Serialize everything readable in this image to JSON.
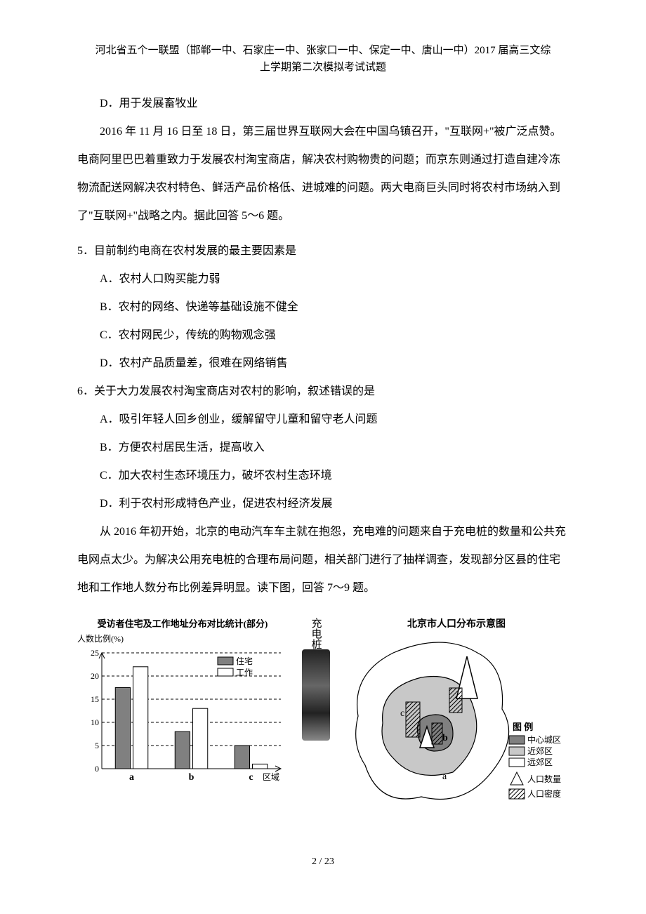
{
  "header": {
    "line1": "河北省五个一联盟（邯郸一中、石家庄一中、张家口一中、保定一中、唐山一中）2017 届高三文综",
    "line2": "上学期第二次模拟考试试题"
  },
  "options_top": {
    "D": "D．用于发展畜牧业"
  },
  "passage1": "2016 年 11 月 16 日至 18 日，第三届世界互联网大会在中国乌镇召开，\"互联网+\"被广泛点赞。电商阿里巴巴着重致力于发展农村淘宝商店，解决农村购物贵的问题；而京东则通过打造自建冷冻物流配送网解决农村特色、鲜活产品价格低、进城难的问题。两大电商巨头同时将农村市场纳入到了\"互联网+\"战略之内。据此回答 5～6 题。",
  "q5": {
    "stem": "5．目前制约电商在农村发展的最主要因素是",
    "A": "A．农村人口购买能力弱",
    "B": "B．农村的网络、快递等基础设施不健全",
    "C": "C．农村网民少，传统的购物观念强",
    "D": "D．农村产品质量差，很难在网络销售"
  },
  "q6": {
    "stem": "6．关于大力发展农村淘宝商店对农村的影响，叙述错误的是",
    "A": "A．吸引年轻人回乡创业，缓解留守儿童和留守老人问题",
    "B": "B．方便农村居民生活，提高收入",
    "C": "C．加大农村生态环境压力，破坏农村生态环境",
    "D": "D．利于农村形成特色产业，促进农村经济发展"
  },
  "passage2": "从 2016 年初开始，北京的电动汽车车主就在抱怨，充电难的问题来自于充电桩的数量和公共充电网点太少。为解决公用充电桩的合理布局问题，相关部门进行了抽样调查，发现部分区县的住宅地和工作地人数分布比例差异明显。读下图，回答 7～9 题。",
  "pile_label": "充电桩",
  "bar_chart": {
    "type": "bar",
    "title": "受访者住宅及工作地址分布对比统计(部分)",
    "ylabel": "人数比例(%)",
    "xlabel": "区域",
    "legend": [
      "住宅",
      "工作"
    ],
    "legend_colors": [
      "#808080",
      "#ffffff"
    ],
    "categories": [
      "a",
      "b",
      "c"
    ],
    "series": {
      "住宅": [
        17.5,
        8,
        5
      ],
      "工作": [
        22,
        13,
        1
      ]
    },
    "ylim": [
      0,
      25
    ],
    "ytick_step": 5,
    "yticks": [
      0,
      5,
      10,
      15,
      20,
      25
    ],
    "bar_fill": {
      "住宅": "#808080",
      "工作": "#ffffff"
    },
    "bar_stroke": "#000000",
    "grid_color": "#000000",
    "grid_dash": "4 3",
    "background_color": "#ffffff",
    "bar_width": 0.35,
    "label_fontsize": 12,
    "title_fontsize": 13
  },
  "map": {
    "title": "北京市人口分布示意图",
    "legend_title": "图 例",
    "regions": [
      {
        "name": "中心城区",
        "fill": "#808080"
      },
      {
        "name": "近郊区",
        "fill": "#c8c8c8"
      },
      {
        "name": "远郊区",
        "fill": "#ffffff"
      }
    ],
    "symbols": [
      {
        "name": "人口数量",
        "glyph": "triangle-outline"
      },
      {
        "name": "人口密度",
        "glyph": "hatched-box"
      }
    ],
    "labels_on_map": [
      "a",
      "b",
      "c"
    ],
    "stroke": "#000000",
    "label_fontsize": 12
  },
  "footer": "2 / 23"
}
